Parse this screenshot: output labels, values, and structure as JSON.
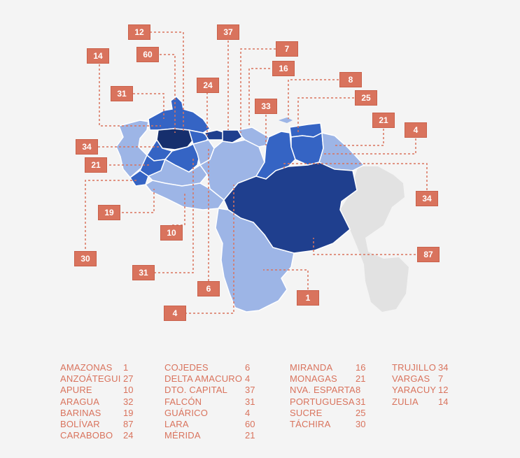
{
  "colors": {
    "background": "#f4f4f4",
    "light_state": "#9db5e6",
    "mid_state": "#3564c4",
    "dark_state": "#1f3f8e",
    "darkest_state": "#162f6d",
    "neighbor": "#e2e2e2",
    "callout": "#d9735d",
    "legend_text": "#d9735d"
  },
  "callouts": [
    {
      "label": "12"
    },
    {
      "label": "37"
    },
    {
      "label": "7"
    },
    {
      "label": "60"
    },
    {
      "label": "14"
    },
    {
      "label": "16"
    },
    {
      "label": "8"
    },
    {
      "label": "24"
    },
    {
      "label": "31"
    },
    {
      "label": "25"
    },
    {
      "label": "33"
    },
    {
      "label": "21"
    },
    {
      "label": "4"
    },
    {
      "label": "34"
    },
    {
      "label": "21"
    },
    {
      "label": "34"
    },
    {
      "label": "19"
    },
    {
      "label": "10"
    },
    {
      "label": "87"
    },
    {
      "label": "30"
    },
    {
      "label": "31"
    },
    {
      "label": "6"
    },
    {
      "label": "1"
    },
    {
      "label": "4"
    }
  ],
  "legend": [
    [
      {
        "name": "AMAZONAS",
        "value": "1"
      },
      {
        "name": "ANZOÁTEGUI",
        "value": "27"
      },
      {
        "name": "APURE",
        "value": "10"
      },
      {
        "name": "ARAGUA",
        "value": "32"
      },
      {
        "name": "BARINAS",
        "value": "19"
      },
      {
        "name": "BOLÍVAR",
        "value": "87"
      },
      {
        "name": "CARABOBO",
        "value": "24"
      }
    ],
    [
      {
        "name": "COJEDES",
        "value": "6"
      },
      {
        "name": "DELTA AMACURO",
        "value": "4"
      },
      {
        "name": "DTO. CAPITAL",
        "value": "37"
      },
      {
        "name": "FALCÓN",
        "value": "31"
      },
      {
        "name": "GUÁRICO",
        "value": "4"
      },
      {
        "name": "LARA",
        "value": "60"
      },
      {
        "name": "MÉRIDA",
        "value": "21"
      }
    ],
    [
      {
        "name": "MIRANDA",
        "value": "16"
      },
      {
        "name": "MONAGAS",
        "value": "21"
      },
      {
        "name": "NVA. ESPARTA",
        "value": "8"
      },
      {
        "name": "PORTUGUESA",
        "value": "31"
      },
      {
        "name": "SUCRE",
        "value": "25"
      },
      {
        "name": "TÁCHIRA",
        "value": "30"
      }
    ],
    [
      {
        "name": "TRUJILLO",
        "value": "34"
      },
      {
        "name": "VARGAS",
        "value": "7"
      },
      {
        "name": "YARACUY",
        "value": "12"
      },
      {
        "name": "ZULIA",
        "value": "14"
      }
    ]
  ]
}
